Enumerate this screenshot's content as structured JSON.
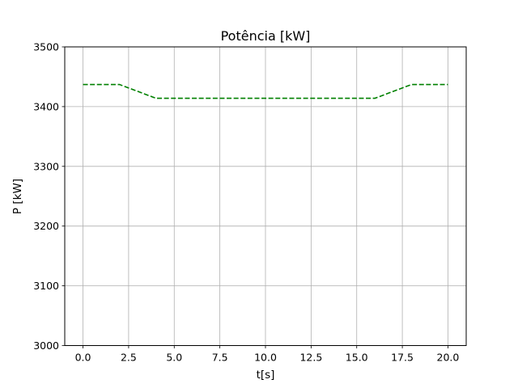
{
  "chart_data": {
    "type": "line",
    "title": "Potência [kW]",
    "xlabel": "t[s]",
    "ylabel": "P [kW]",
    "xlim": [
      -1,
      21
    ],
    "ylim": [
      3000,
      3500
    ],
    "xticks": [
      0,
      2.5,
      5,
      7.5,
      10,
      12.5,
      15,
      17.5,
      20
    ],
    "xtick_labels": [
      "0.0",
      "2.5",
      "5.0",
      "7.5",
      "10.0",
      "12.5",
      "15.0",
      "17.5",
      "20.0"
    ],
    "yticks": [
      3000,
      3100,
      3200,
      3300,
      3400,
      3500
    ],
    "ytick_labels": [
      "3000",
      "3100",
      "3200",
      "3300",
      "3400",
      "3500"
    ],
    "grid": true,
    "series": [
      {
        "color": "#008000",
        "line_style": "dashed",
        "x": [
          0,
          2,
          4,
          16,
          18,
          20
        ],
        "y": [
          3437,
          3437,
          3414,
          3414,
          3437,
          3437
        ]
      }
    ]
  }
}
